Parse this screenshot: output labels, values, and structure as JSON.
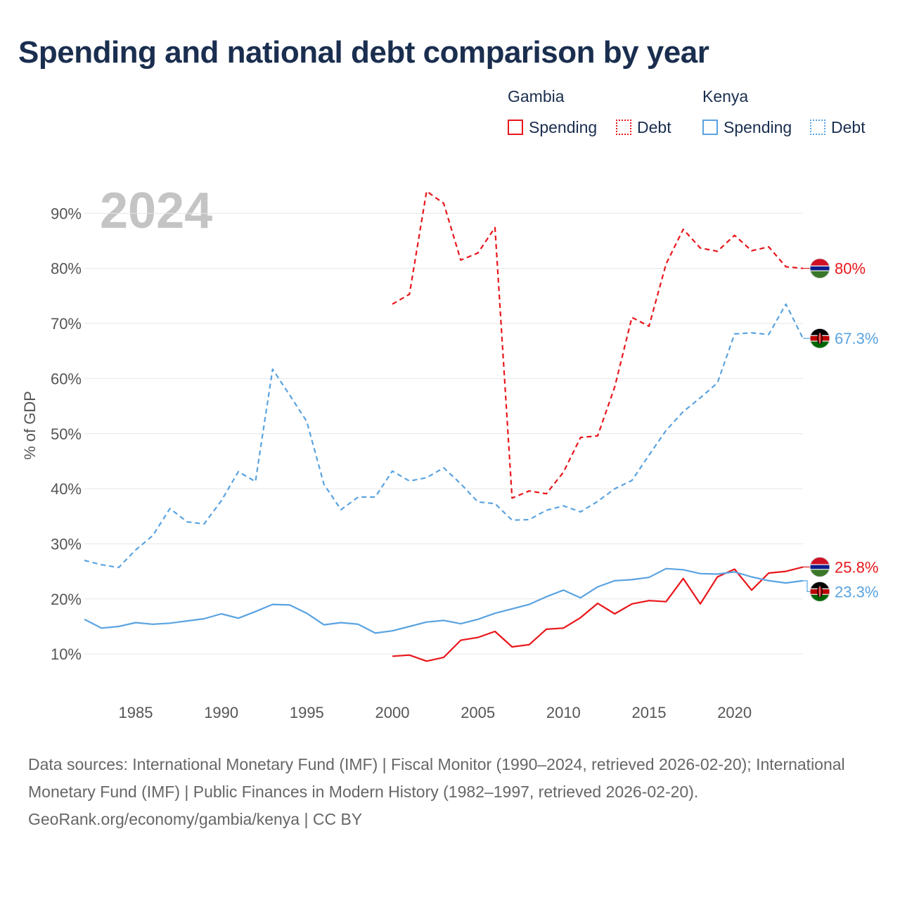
{
  "chart_data": {
    "type": "line",
    "title": "Spending and national debt comparison by year",
    "ylabel": "% of GDP",
    "xlabel": "",
    "year_label": "2024",
    "xlim": [
      1982,
      2024
    ],
    "ylim": [
      3,
      100
    ],
    "y_ticks": [
      10,
      20,
      30,
      40,
      50,
      60,
      70,
      80,
      90
    ],
    "y_tick_labels": [
      "10%",
      "20%",
      "30%",
      "40%",
      "50%",
      "60%",
      "70%",
      "80%",
      "90%"
    ],
    "x_ticks": [
      1985,
      1990,
      1995,
      2000,
      2005,
      2010,
      2015,
      2020
    ],
    "x_tick_labels": [
      "1985",
      "1990",
      "1995",
      "2000",
      "2005",
      "2010",
      "2015",
      "2020"
    ],
    "legend": {
      "groups": [
        {
          "country": "Gambia",
          "items": [
            {
              "label": "Spending",
              "style": "solid"
            },
            {
              "label": "Debt",
              "style": "dotted"
            }
          ]
        },
        {
          "country": "Kenya",
          "items": [
            {
              "label": "Spending",
              "style": "solid"
            },
            {
              "label": "Debt",
              "style": "dotted"
            }
          ]
        }
      ]
    },
    "series": [
      {
        "name": "Gambia Spending",
        "country": "Gambia",
        "metric": "Spending",
        "color": "#e8161b",
        "dashed": false,
        "x": [
          2000,
          2001,
          2002,
          2003,
          2004,
          2005,
          2006,
          2007,
          2008,
          2009,
          2010,
          2011,
          2012,
          2013,
          2014,
          2015,
          2016,
          2017,
          2018,
          2019,
          2020,
          2021,
          2022,
          2023,
          2024
        ],
        "values": [
          9.6,
          9.8,
          8.7,
          9.4,
          12.5,
          13.0,
          14.1,
          11.3,
          11.7,
          14.5,
          14.7,
          16.6,
          19.2,
          17.3,
          19.1,
          19.7,
          19.5,
          23.7,
          19.1,
          24.0,
          25.4,
          21.6,
          24.7,
          25.0,
          25.8
        ],
        "end_label": "25.8%",
        "flag": "gambia"
      },
      {
        "name": "Gambia Debt",
        "country": "Gambia",
        "metric": "Debt",
        "color": "#e8161b",
        "dashed": true,
        "x": [
          2000,
          2001,
          2002,
          2003,
          2004,
          2005,
          2006,
          2007,
          2008,
          2009,
          2010,
          2011,
          2012,
          2013,
          2014,
          2015,
          2016,
          2017,
          2018,
          2019,
          2020,
          2021,
          2022,
          2023,
          2024
        ],
        "values": [
          73.5,
          75.3,
          94.0,
          91.8,
          81.5,
          82.8,
          87.4,
          38.3,
          39.6,
          39.1,
          43.0,
          49.3,
          49.6,
          58.5,
          71.1,
          69.5,
          80.8,
          87.1,
          83.7,
          83.1,
          86.0,
          83.2,
          83.9,
          80.3,
          80.0
        ],
        "end_label": "80%",
        "flag": "gambia"
      },
      {
        "name": "Kenya Spending",
        "country": "Kenya",
        "metric": "Spending",
        "color": "#5aa3e1",
        "dashed": false,
        "x": [
          1982,
          1983,
          1984,
          1985,
          1986,
          1987,
          1988,
          1989,
          1990,
          1991,
          1992,
          1993,
          1994,
          1995,
          1996,
          1997,
          1998,
          1999,
          2000,
          2001,
          2002,
          2003,
          2004,
          2005,
          2006,
          2007,
          2008,
          2009,
          2010,
          2011,
          2012,
          2013,
          2014,
          2015,
          2016,
          2017,
          2018,
          2019,
          2020,
          2021,
          2022,
          2023,
          2024
        ],
        "values": [
          16.3,
          14.7,
          15.0,
          15.7,
          15.4,
          15.6,
          16.0,
          16.4,
          17.3,
          16.5,
          17.7,
          19.0,
          18.9,
          17.4,
          15.3,
          15.7,
          15.4,
          13.8,
          14.2,
          15.0,
          15.8,
          16.1,
          15.5,
          16.3,
          17.4,
          18.2,
          19.0,
          20.4,
          21.6,
          20.2,
          22.2,
          23.3,
          23.5,
          23.9,
          25.5,
          25.3,
          24.6,
          24.5,
          24.9,
          24.0,
          23.3,
          22.9,
          23.3
        ],
        "end_label": "23.3%",
        "flag": "kenya"
      },
      {
        "name": "Kenya Debt",
        "country": "Kenya",
        "metric": "Debt",
        "color": "#5aa3e1",
        "dashed": true,
        "x": [
          1982,
          1983,
          1984,
          1985,
          1986,
          1987,
          1988,
          1989,
          1990,
          1991,
          1992,
          1993,
          1994,
          1995,
          1996,
          1997,
          1998,
          1999,
          2000,
          2001,
          2002,
          2003,
          2004,
          2005,
          2006,
          2007,
          2008,
          2009,
          2010,
          2011,
          2012,
          2013,
          2014,
          2015,
          2016,
          2017,
          2018,
          2019,
          2020,
          2021,
          2022,
          2023,
          2024
        ],
        "values": [
          27.0,
          26.2,
          25.7,
          28.9,
          31.5,
          36.4,
          34.0,
          33.6,
          37.8,
          43.1,
          41.3,
          61.7,
          57.0,
          52.2,
          40.8,
          36.2,
          38.5,
          38.5,
          43.2,
          41.4,
          42.0,
          43.8,
          40.9,
          37.6,
          37.3,
          34.3,
          34.4,
          36.1,
          36.9,
          35.8,
          37.7,
          40.0,
          41.5,
          46.1,
          50.6,
          54.0,
          56.5,
          59.2,
          68.1,
          68.3,
          68.0,
          73.5,
          67.3
        ],
        "end_label": "67.3%",
        "flag": "kenya"
      }
    ]
  },
  "footer": {
    "sources": "Data sources: International Monetary Fund (IMF) | Fiscal Monitor (1990–2024, retrieved 2026-02-20); International Monetary Fund (IMF) | Public Finances in Modern History (1982–1997, retrieved 2026-02-20).",
    "credit": "GeoRank.org/economy/gambia/kenya | CC BY"
  },
  "colors": {
    "gambia": "#e8161b",
    "kenya": "#5aa3e1",
    "title": "#1a2e4f",
    "axis_text": "#555555",
    "grid": "#e6e6e6",
    "year_watermark": "#c4c4c4"
  }
}
